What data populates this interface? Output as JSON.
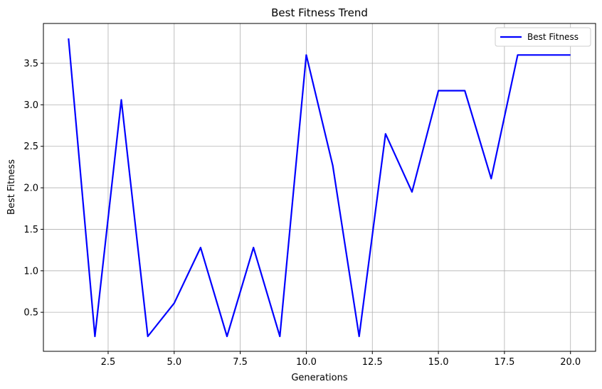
{
  "chart_data": {
    "type": "line",
    "title": "Best Fitness Trend",
    "xlabel": "Generations",
    "ylabel": "Best Fitness",
    "xlim": [
      0.05,
      20.95
    ],
    "ylim": [
      0.03,
      3.98
    ],
    "xticks": [
      2.5,
      5.0,
      7.5,
      10.0,
      12.5,
      15.0,
      17.5,
      20.0
    ],
    "xtick_labels": [
      "2.5",
      "5.0",
      "7.5",
      "10.0",
      "12.5",
      "15.0",
      "17.5",
      "20.0"
    ],
    "yticks": [
      0.5,
      1.0,
      1.5,
      2.0,
      2.5,
      3.0,
      3.5
    ],
    "ytick_labels": [
      "0.5",
      "1.0",
      "1.5",
      "2.0",
      "2.5",
      "3.0",
      "3.5"
    ],
    "grid": true,
    "legend_position": "top-right",
    "series": [
      {
        "name": "Best Fitness",
        "color": "#0000ff",
        "x": [
          1,
          2,
          3,
          4,
          5,
          6,
          7,
          8,
          9,
          10,
          11,
          12,
          13,
          14,
          15,
          16,
          17,
          18,
          19,
          20
        ],
        "y": [
          3.8,
          0.21,
          3.06,
          0.21,
          0.61,
          1.28,
          0.21,
          1.28,
          0.21,
          3.6,
          2.27,
          0.21,
          2.65,
          1.95,
          3.17,
          3.17,
          2.11,
          3.6,
          3.6,
          3.6
        ]
      }
    ]
  }
}
